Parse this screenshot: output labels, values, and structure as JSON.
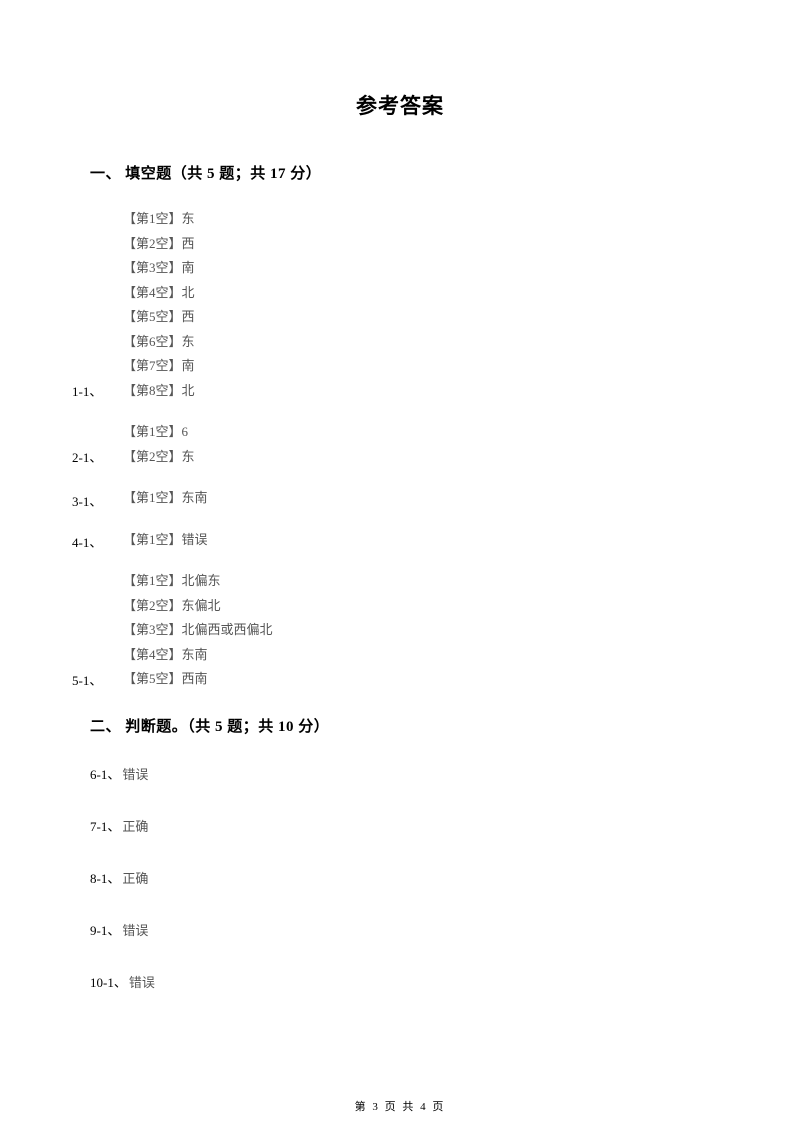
{
  "title": "参考答案",
  "section1": {
    "header": "一、 填空题（共 5 题；共 17 分）",
    "questions": [
      {
        "number": "1-1、",
        "answers": [
          "【第1空】东",
          "【第2空】西",
          "【第3空】南",
          "【第4空】北",
          "【第5空】西",
          "【第6空】东",
          "【第7空】南",
          "【第8空】北"
        ]
      },
      {
        "number": "2-1、",
        "answers": [
          "【第1空】6",
          "【第2空】东"
        ]
      },
      {
        "number": "3-1、",
        "answers": [
          "【第1空】东南"
        ]
      },
      {
        "number": "4-1、",
        "answers": [
          "【第1空】错误"
        ]
      },
      {
        "number": "5-1、",
        "answers": [
          "【第1空】北偏东",
          "【第2空】东偏北",
          "【第3空】北偏西或西偏北",
          "【第4空】东南",
          "【第5空】西南"
        ]
      }
    ]
  },
  "section2": {
    "header": "二、 判断题。（共 5 题；共 10 分）",
    "questions": [
      {
        "number": "6-1、",
        "answer": "错误"
      },
      {
        "number": "7-1、",
        "answer": "正确"
      },
      {
        "number": "8-1、",
        "answer": "正确"
      },
      {
        "number": "9-1、",
        "answer": "错误"
      },
      {
        "number": "10-1、",
        "answer": "错误"
      }
    ]
  },
  "footer": "第 3 页 共 4 页"
}
